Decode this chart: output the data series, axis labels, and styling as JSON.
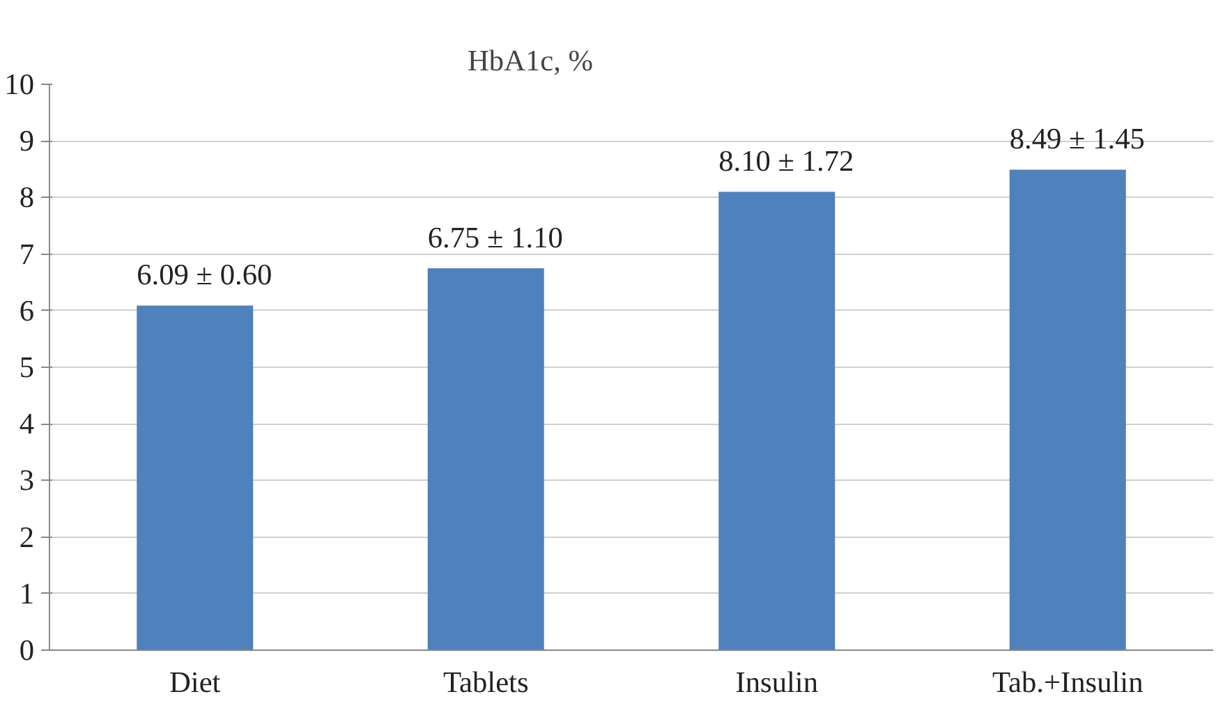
{
  "chart_data": {
    "type": "bar",
    "title": "HbA1c, %",
    "categories": [
      "Diet",
      "Tablets",
      "Insulin",
      "Tab.+Insulin"
    ],
    "values": [
      6.09,
      6.75,
      8.1,
      8.49
    ],
    "value_labels": [
      "6.09 ± 0.60",
      "6.75 ± 1.10",
      "8.10 ± 1.72",
      "8.49 ± 1.45"
    ],
    "color": "#4f81bd",
    "ylim": [
      0,
      10
    ],
    "yticks": [
      0,
      1,
      2,
      3,
      4,
      5,
      6,
      7,
      8,
      9,
      10
    ],
    "grid": "y"
  }
}
